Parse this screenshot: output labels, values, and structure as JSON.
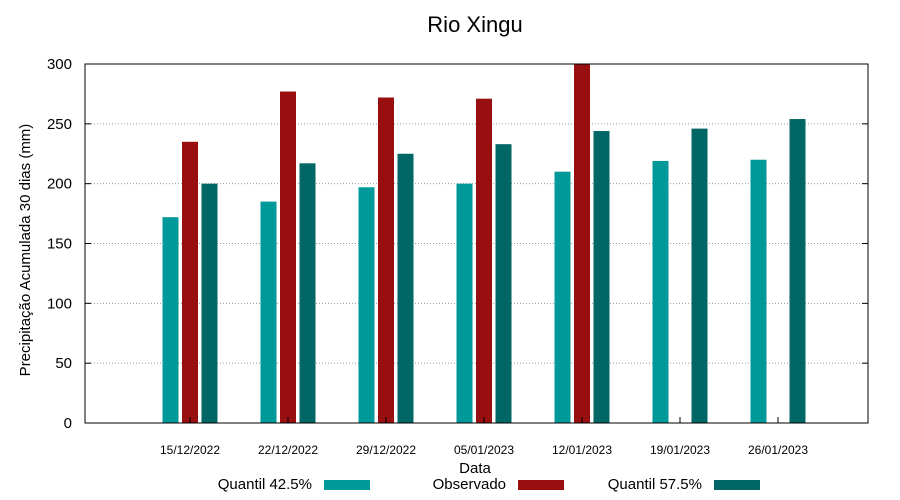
{
  "chart_data": {
    "type": "bar",
    "title": "Rio Xingu",
    "xlabel": "Data",
    "ylabel": "Precipitação Acumulada 30 dias (mm)",
    "ylim": [
      0,
      300
    ],
    "yticks": [
      0,
      50,
      100,
      150,
      200,
      250,
      300
    ],
    "grid": true,
    "legend_position": "bottom",
    "categories": [
      "15/12/2022",
      "22/12/2022",
      "29/12/2022",
      "05/01/2023",
      "12/01/2023",
      "19/01/2023",
      "26/01/2023"
    ],
    "series": [
      {
        "name": "Quantil 42.5%",
        "color": "#009999",
        "values": [
          172,
          185,
          197,
          200,
          210,
          219,
          220
        ]
      },
      {
        "name": "Observado",
        "color": "#990f0f",
        "values": [
          235,
          277,
          272,
          271,
          300,
          null,
          null
        ]
      },
      {
        "name": "Quantil 57.5%",
        "color": "#006666",
        "values": [
          200,
          217,
          225,
          233,
          244,
          246,
          254
        ]
      }
    ]
  }
}
